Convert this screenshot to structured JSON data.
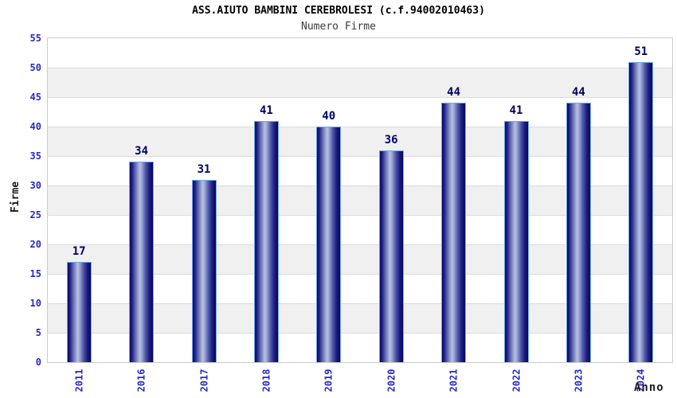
{
  "title": "ASS.AIUTO BAMBINI CEREBROLESI (c.f.94002010463)",
  "subtitle": "Numero Firme",
  "chart_data": {
    "type": "bar",
    "title": "ASS.AIUTO BAMBINI CEREBROLESI (c.f.94002010463)",
    "subtitle": "Numero Firme",
    "categories": [
      "2011",
      "2016",
      "2017",
      "2018",
      "2019",
      "2020",
      "2021",
      "2022",
      "2023",
      "2024"
    ],
    "values": [
      17,
      34,
      31,
      41,
      40,
      36,
      44,
      41,
      44,
      51
    ],
    "xlabel": "Anno",
    "ylabel": "Firme",
    "ylim": [
      0,
      55
    ],
    "ytick_step": 5,
    "grid": true,
    "legend": "none",
    "band_fill": "alternating horizontal bands",
    "colors": {
      "tick_label": "#2828cc",
      "value_label": "#00006a",
      "band_alt": "#f0f0f0",
      "gridline": "#dcdcdc",
      "plot_border": "#cccccc",
      "bar_border": "#6fa8e8",
      "title": "#000000",
      "subtitle": "#3a3a3a",
      "axis_title": "#1a1a1a",
      "bar_gradient_stops": [
        [
          "#07075c",
          0
        ],
        [
          "#22228a",
          10
        ],
        [
          "#6a74b4",
          26
        ],
        [
          "#aab4da",
          40
        ],
        [
          "#b6bee2",
          45
        ],
        [
          "#8e96cc",
          55
        ],
        [
          "#5058a8",
          68
        ],
        [
          "#1c1c80",
          85
        ],
        [
          "#07075c",
          100
        ]
      ]
    }
  }
}
